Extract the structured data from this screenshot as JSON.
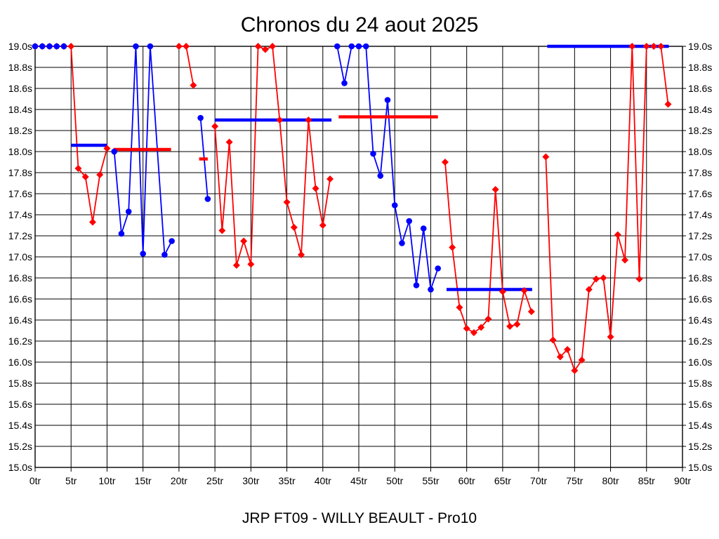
{
  "chart_data": {
    "type": "line",
    "title": "Chronos du 24 aout 2025",
    "footer": "JRP FT09 - WILLY BEAULT - Pro10",
    "grid": true,
    "legend": "none",
    "x_axis": {
      "unit": "tr",
      "min": 0,
      "max": 90,
      "tick_values": [
        0,
        5,
        10,
        15,
        20,
        25,
        30,
        35,
        40,
        45,
        50,
        55,
        60,
        65,
        70,
        75,
        80,
        85,
        90
      ],
      "tick_labels": [
        "0tr",
        "5tr",
        "10tr",
        "15tr",
        "20tr",
        "25tr",
        "30tr",
        "35tr",
        "40tr",
        "45tr",
        "50tr",
        "55tr",
        "60tr",
        "65tr",
        "70tr",
        "75tr",
        "80tr",
        "85tr",
        "90tr"
      ]
    },
    "y_axis": {
      "unit": "s",
      "min": 15.0,
      "max": 19.0,
      "sides": [
        "left",
        "right"
      ],
      "tick_values": [
        19.0,
        18.8,
        18.6,
        18.4,
        18.2,
        18.0,
        17.8,
        17.6,
        17.4,
        17.2,
        17.0,
        16.8,
        16.6,
        16.4,
        16.2,
        16.0,
        15.8,
        15.6,
        15.4,
        15.2,
        15.0
      ],
      "tick_labels": [
        "19.0s",
        "18.8s",
        "18.6s",
        "18.4s",
        "18.2s",
        "18.0s",
        "17.8s",
        "17.6s",
        "17.4s",
        "17.2s",
        "17.0s",
        "16.8s",
        "16.6s",
        "16.4s",
        "16.2s",
        "16.0s",
        "15.8s",
        "15.6s",
        "15.4s",
        "15.2s",
        "15.0s"
      ]
    },
    "series": [
      {
        "name": "driver-red",
        "color": "#ff0000",
        "marker": "diamond",
        "segments": [
          [
            [
              0,
              19.0
            ],
            [
              1,
              19.0
            ],
            [
              2,
              19.0
            ],
            [
              3,
              19.0
            ],
            [
              4,
              19.0
            ],
            [
              5,
              19.0
            ],
            [
              6,
              17.84
            ],
            [
              7,
              17.76
            ],
            [
              8,
              17.33
            ],
            [
              9,
              17.78
            ],
            [
              10,
              18.03
            ]
          ],
          [
            [
              20,
              19.0
            ],
            [
              21,
              19.0
            ],
            [
              22,
              18.63
            ]
          ],
          [
            [
              25,
              18.24
            ],
            [
              26,
              17.25
            ],
            [
              27,
              18.09
            ],
            [
              28,
              16.92
            ],
            [
              29,
              17.15
            ],
            [
              30,
              16.93
            ],
            [
              31,
              19.0
            ],
            [
              32,
              18.97
            ],
            [
              33,
              19.0
            ],
            [
              34,
              18.3
            ],
            [
              35,
              17.52
            ],
            [
              36,
              17.28
            ],
            [
              37,
              17.02
            ],
            [
              38,
              18.3
            ],
            [
              39,
              17.65
            ],
            [
              40,
              17.3
            ],
            [
              41,
              17.74
            ]
          ],
          [
            [
              57,
              17.9
            ],
            [
              58,
              17.09
            ],
            [
              59,
              16.52
            ],
            [
              60,
              16.32
            ],
            [
              61,
              16.28
            ],
            [
              62,
              16.33
            ],
            [
              63,
              16.41
            ],
            [
              64,
              17.64
            ],
            [
              65,
              16.67
            ],
            [
              66,
              16.34
            ],
            [
              67,
              16.36
            ],
            [
              68,
              16.68
            ],
            [
              69,
              16.48
            ]
          ],
          [
            [
              71,
              17.95
            ],
            [
              72,
              16.21
            ],
            [
              73,
              16.05
            ],
            [
              74,
              16.12
            ],
            [
              75,
              15.92
            ],
            [
              76,
              16.02
            ],
            [
              77,
              16.69
            ],
            [
              78,
              16.79
            ],
            [
              79,
              16.8
            ],
            [
              80,
              16.24
            ],
            [
              81,
              17.21
            ],
            [
              82,
              16.97
            ],
            [
              83,
              19.0
            ],
            [
              84,
              16.79
            ],
            [
              85,
              19.0
            ],
            [
              86,
              19.0
            ],
            [
              87,
              19.0
            ],
            [
              88,
              18.45
            ]
          ]
        ],
        "flat_lines": [
          {
            "from": 10.9,
            "to": 18.9,
            "value": 18.02
          },
          {
            "from": 22.8,
            "to": 24.0,
            "value": 17.93
          },
          {
            "from": 42.2,
            "to": 56.0,
            "value": 18.33
          }
        ]
      },
      {
        "name": "driver-blue",
        "color": "#0000ff",
        "marker": "circle",
        "segments": [
          [
            [
              0,
              19.0
            ],
            [
              1,
              19.0
            ],
            [
              2,
              19.0
            ],
            [
              3,
              19.0
            ],
            [
              4,
              19.0
            ]
          ],
          [
            [
              11,
              18.0
            ],
            [
              12,
              17.22
            ],
            [
              13,
              17.43
            ],
            [
              14,
              19.0
            ],
            [
              15,
              17.03
            ],
            [
              16,
              19.0
            ],
            [
              18,
              17.02
            ],
            [
              19,
              17.15
            ]
          ],
          [
            [
              23,
              18.32
            ],
            [
              24,
              17.55
            ]
          ],
          [
            [
              42,
              19.0
            ],
            [
              43,
              18.65
            ],
            [
              44,
              19.0
            ],
            [
              45,
              19.0
            ],
            [
              46,
              19.0
            ],
            [
              47,
              17.98
            ],
            [
              48,
              17.77
            ],
            [
              49,
              18.49
            ],
            [
              50,
              17.49
            ],
            [
              51,
              17.13
            ],
            [
              52,
              17.34
            ],
            [
              53,
              16.73
            ],
            [
              54,
              17.27
            ],
            [
              55,
              16.69
            ],
            [
              56,
              16.89
            ]
          ]
        ],
        "flat_lines": [
          {
            "from": 5.0,
            "to": 10.0,
            "value": 18.06
          },
          {
            "from": 25.0,
            "to": 41.2,
            "value": 18.3
          },
          {
            "from": 57.2,
            "to": 69.1,
            "value": 16.69
          },
          {
            "from": 71.2,
            "to": 88.1,
            "value": 19.0
          }
        ]
      }
    ]
  }
}
